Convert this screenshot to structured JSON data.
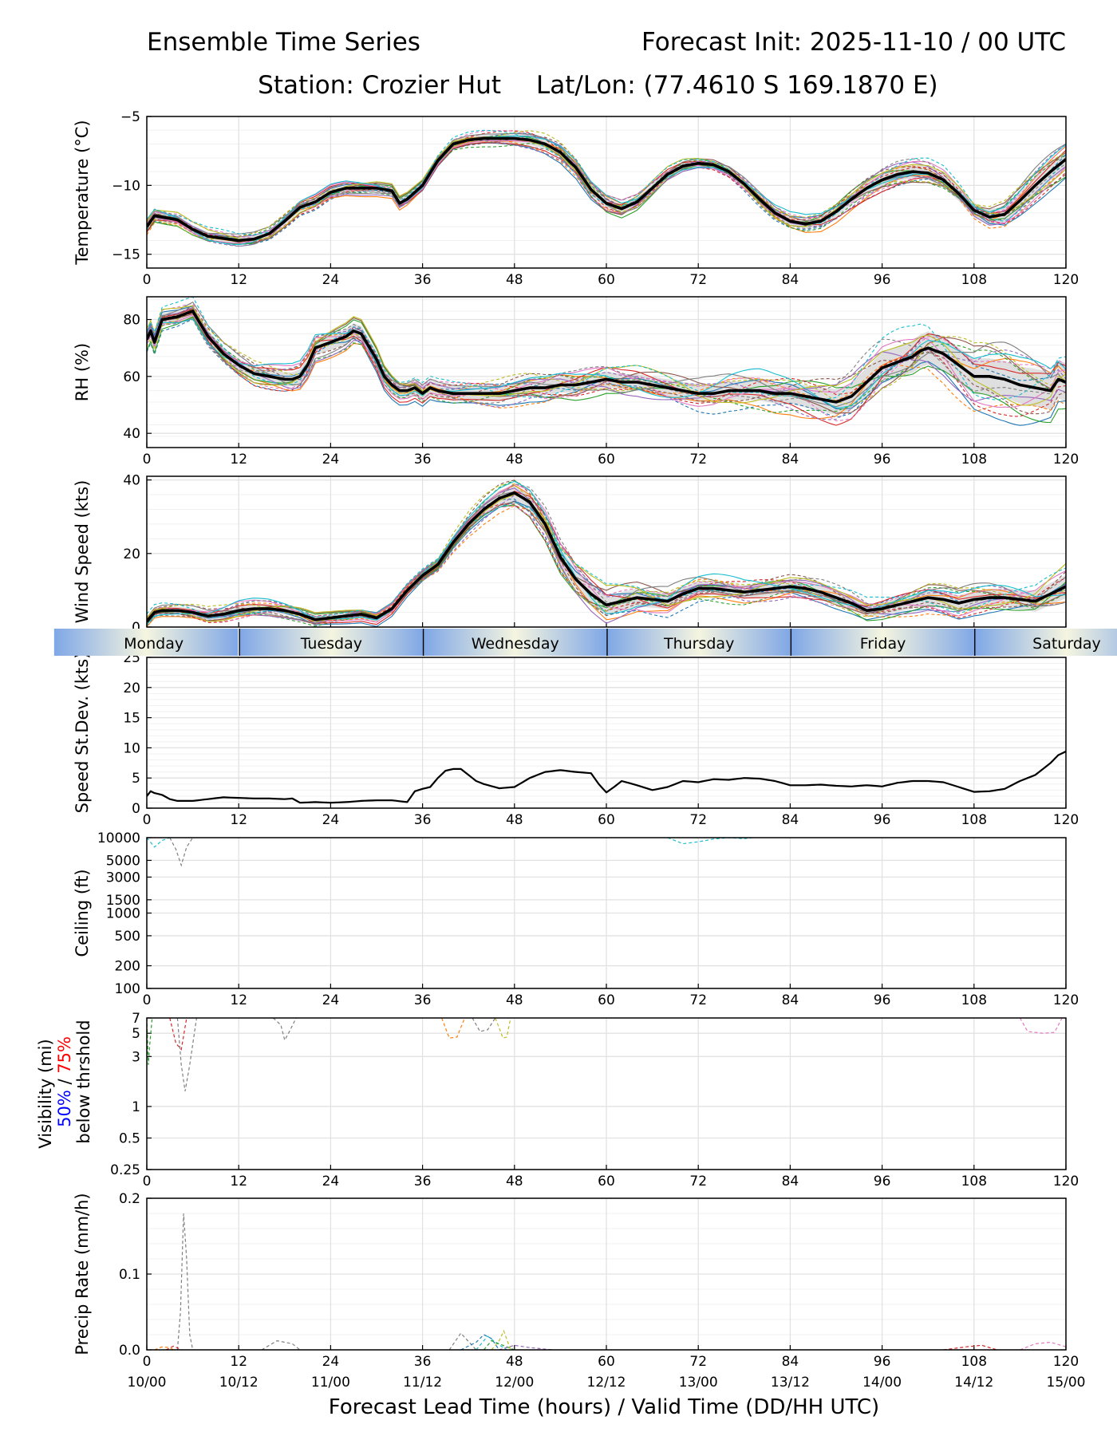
{
  "header": {
    "title_left": "Ensemble Time Series",
    "title_right": "Forecast Init: 2025-11-10 / 00 UTC",
    "station": "Station: Crozier Hut",
    "latlon": "Lat/Lon: (77.4610 S 169.1870 E)"
  },
  "colors": {
    "mean": "#000000",
    "spread": "#d9d9d9",
    "grid": "#e2e2e2",
    "vis50": "#0000ff",
    "vis75": "#ff0000",
    "day_blue": "#7fa7e6",
    "day_cream": "#f5f5e0",
    "members": [
      "#1f77b4",
      "#ff7f0e",
      "#2ca02c",
      "#d62728",
      "#9467bd",
      "#8c564b",
      "#e377c2",
      "#7f7f7f",
      "#bcbd22",
      "#17becf"
    ]
  },
  "chart_data": {
    "type": "line",
    "x_ticks": [
      0,
      12,
      24,
      36,
      48,
      60,
      72,
      84,
      96,
      108,
      120
    ],
    "xlabel": "Forecast Lead Time (hours) / Valid Time (DD/HH UTC)",
    "valid_time_labels": [
      "10/00",
      "10/12",
      "11/00",
      "11/12",
      "12/00",
      "12/12",
      "13/00",
      "13/12",
      "14/00",
      "14/12",
      "15/00"
    ],
    "day_labels": [
      "Monday",
      "Tuesday",
      "Wednesday",
      "Thursday",
      "Friday",
      "Saturday"
    ],
    "panels": [
      {
        "id": "temperature",
        "ylabel": "Temperature (°C)",
        "ylim": [
          -16,
          -5
        ],
        "yticks": [
          -15,
          -10,
          -5
        ],
        "ytick_labels": [
          "−15",
          "−10",
          "−5"
        ],
        "mean_x": [
          0,
          1,
          2,
          4,
          6,
          8,
          12,
          14,
          16,
          18,
          20,
          22,
          24,
          26,
          28,
          30,
          32,
          33,
          34,
          36,
          38,
          40,
          42,
          44,
          46,
          48,
          50,
          52,
          54,
          56,
          58,
          60,
          62,
          64,
          66,
          68,
          70,
          72,
          74,
          76,
          78,
          80,
          82,
          84,
          86,
          88,
          90,
          92,
          94,
          96,
          98,
          100,
          102,
          104,
          106,
          108,
          110,
          112,
          114,
          116,
          118,
          120
        ],
        "mean_y": [
          -13.0,
          -12.2,
          -12.3,
          -12.5,
          -13.2,
          -13.7,
          -14.0,
          -13.9,
          -13.5,
          -12.6,
          -11.6,
          -11.2,
          -10.5,
          -10.2,
          -10.2,
          -10.2,
          -10.4,
          -11.3,
          -11.0,
          -10.0,
          -8.2,
          -7.0,
          -6.7,
          -6.6,
          -6.6,
          -6.6,
          -6.7,
          -7.0,
          -7.6,
          -8.7,
          -10.3,
          -11.3,
          -11.7,
          -11.2,
          -10.2,
          -9.2,
          -8.6,
          -8.4,
          -8.5,
          -9.0,
          -9.9,
          -11.0,
          -12.0,
          -12.6,
          -12.8,
          -12.6,
          -11.9,
          -11.0,
          -10.2,
          -9.6,
          -9.2,
          -9.0,
          -9.1,
          -9.6,
          -10.6,
          -11.8,
          -12.3,
          -12.1,
          -11.1,
          -10.0,
          -9.0,
          -8.1
        ],
        "spread": [
          0.8,
          0.6,
          0.6,
          0.7,
          0.8,
          0.8,
          0.5,
          0.7,
          1.0,
          1.2,
          1.5
        ],
        "member_amp": 0.55
      },
      {
        "id": "rh",
        "ylabel": "RH (%)",
        "ylim": [
          35,
          88
        ],
        "yticks": [
          40,
          60,
          80
        ],
        "ytick_labels": [
          "40",
          "60",
          "80"
        ],
        "mean_x": [
          0,
          0.5,
          1,
          2,
          4,
          6,
          8,
          10,
          12,
          14,
          16,
          18,
          19,
          20,
          21,
          22,
          24,
          26,
          27,
          28,
          30,
          31,
          32,
          33,
          34,
          35,
          36,
          37,
          38,
          40,
          42,
          44,
          46,
          48,
          50,
          52,
          54,
          56,
          58,
          60,
          62,
          64,
          66,
          68,
          70,
          72,
          74,
          76,
          78,
          80,
          82,
          84,
          86,
          88,
          90,
          92,
          94,
          96,
          98,
          100,
          101,
          102,
          104,
          106,
          108,
          110,
          112,
          114,
          116,
          118,
          119,
          120
        ],
        "mean_y": [
          73,
          76,
          72,
          80,
          81,
          83,
          74,
          68,
          64,
          61,
          60,
          59,
          59,
          60,
          64,
          70,
          72,
          74,
          76,
          75,
          66,
          60,
          57,
          55,
          55,
          56,
          54,
          56,
          55,
          54,
          54,
          54,
          54,
          55,
          56,
          56,
          57,
          57,
          58,
          59,
          58,
          58,
          57,
          56,
          55,
          54,
          54,
          55,
          55,
          55,
          54,
          54,
          53,
          52,
          51,
          53,
          58,
          63,
          65,
          67,
          69,
          70,
          68,
          64,
          60,
          60,
          59,
          57,
          56,
          55,
          59,
          58
        ],
        "spread": [
          5,
          5,
          6,
          6,
          6,
          6,
          7,
          8,
          12,
          14,
          15
        ],
        "member_amp": 4.0
      },
      {
        "id": "wind_speed",
        "ylabel": "Wind Speed (kts)",
        "ylim": [
          0,
          41
        ],
        "yticks": [
          0,
          20,
          40
        ],
        "ytick_labels": [
          "0",
          "20",
          "40"
        ],
        "mean_x": [
          0,
          1,
          2,
          4,
          6,
          8,
          10,
          12,
          14,
          16,
          18,
          20,
          22,
          24,
          26,
          28,
          30,
          32,
          34,
          36,
          38,
          40,
          42,
          44,
          46,
          48,
          50,
          52,
          54,
          56,
          58,
          60,
          62,
          64,
          66,
          68,
          70,
          72,
          74,
          76,
          78,
          80,
          82,
          84,
          86,
          88,
          90,
          92,
          94,
          96,
          98,
          100,
          102,
          104,
          106,
          108,
          110,
          112,
          114,
          116,
          118,
          120
        ],
        "mean_y": [
          1.5,
          4.0,
          4.5,
          4.5,
          4.0,
          3.0,
          3.5,
          4.5,
          5.0,
          5.0,
          4.5,
          3.5,
          2.0,
          2.5,
          3.0,
          3.5,
          2.5,
          5.0,
          10.0,
          14.0,
          17.0,
          23.0,
          28.0,
          32.0,
          35.0,
          36.5,
          34.0,
          28.0,
          19.0,
          13.0,
          9.0,
          6.0,
          7.0,
          8.0,
          7.5,
          7.0,
          9.0,
          10.5,
          10.5,
          10.0,
          9.5,
          10.0,
          10.5,
          11.0,
          10.5,
          9.5,
          8.0,
          6.5,
          4.5,
          5.0,
          6.0,
          7.0,
          8.0,
          7.5,
          6.5,
          7.5,
          8.0,
          8.0,
          7.5,
          7.0,
          9.0,
          11.0
        ],
        "spread": [
          2,
          3,
          2,
          3,
          5,
          6,
          4,
          4,
          4,
          5,
          7
        ],
        "member_amp": 2.5
      },
      {
        "id": "speed_stdev",
        "ylabel": "Speed St.Dev. (kts)",
        "ylim": [
          0,
          25
        ],
        "yticks": [
          0,
          5,
          10,
          15,
          20,
          25
        ],
        "ytick_labels": [
          "0",
          "5",
          "10",
          "15",
          "20",
          "25"
        ],
        "mean_x": [
          0,
          0.5,
          1,
          2,
          3,
          4,
          6,
          8,
          10,
          12,
          14,
          16,
          18,
          19,
          20,
          22,
          24,
          26,
          28,
          30,
          32,
          34,
          35,
          36,
          37,
          38,
          39,
          40,
          41,
          42,
          43,
          44,
          46,
          48,
          50,
          52,
          54,
          56,
          58,
          59,
          60,
          61,
          62,
          64,
          66,
          68,
          70,
          72,
          74,
          76,
          78,
          80,
          82,
          84,
          86,
          88,
          90,
          92,
          94,
          96,
          98,
          100,
          102,
          104,
          106,
          108,
          110,
          112,
          114,
          116,
          118,
          119,
          120
        ],
        "mean_y": [
          2.0,
          2.8,
          2.5,
          2.2,
          1.5,
          1.2,
          1.2,
          1.5,
          1.8,
          1.7,
          1.6,
          1.6,
          1.5,
          1.6,
          0.9,
          1.0,
          0.9,
          1.0,
          1.2,
          1.3,
          1.3,
          1.0,
          2.8,
          3.2,
          3.5,
          5.0,
          6.2,
          6.5,
          6.5,
          5.5,
          4.5,
          4.0,
          3.3,
          3.5,
          5.0,
          6.0,
          6.3,
          6.0,
          5.8,
          4.0,
          2.6,
          3.5,
          4.5,
          3.8,
          3.0,
          3.5,
          4.5,
          4.3,
          4.8,
          4.7,
          5.0,
          4.9,
          4.5,
          3.8,
          3.8,
          3.9,
          3.7,
          3.6,
          3.8,
          3.6,
          4.2,
          4.5,
          4.5,
          4.3,
          3.5,
          2.7,
          2.8,
          3.2,
          4.5,
          5.5,
          7.5,
          8.8,
          9.4
        ],
        "spread": null,
        "member_amp": 0
      },
      {
        "id": "ceiling",
        "ylabel": "Ceiling (ft)",
        "yscale": "log",
        "ylim": [
          100,
          10000
        ],
        "yticks": [
          100,
          200,
          500,
          1000,
          1500,
          3000,
          5000,
          10000
        ],
        "ytick_labels": [
          "100",
          "200",
          "500",
          "1000",
          "1500",
          "3000",
          "5000",
          "10000"
        ],
        "traces": [
          {
            "member": 9,
            "x": [
              0,
              1,
              2,
              3
            ],
            "y": [
              10000,
              7500,
              9200,
              10000
            ]
          },
          {
            "member": 7,
            "x": [
              3,
              3.8,
              4.5,
              5.2,
              6
            ],
            "y": [
              10000,
              7000,
              4300,
              7500,
              10000
            ]
          },
          {
            "member": 9,
            "x": [
              68,
              70,
              72,
              74,
              76,
              78,
              79
            ],
            "y": [
              10000,
              8300,
              8800,
              9600,
              10000,
              9700,
              10000
            ]
          }
        ]
      },
      {
        "id": "visibility",
        "ylabel": "Visibility (mi)",
        "ylabel_note_50": "50%",
        "ylabel_note_sep": " / ",
        "ylabel_note_75": "75%",
        "ylabel_note_line2": "below thrshold",
        "yscale": "log",
        "ylim": [
          0.25,
          7
        ],
        "yticks": [
          0.25,
          0.5,
          1,
          3,
          5,
          7
        ],
        "ytick_labels": [
          "0.25",
          "0.5",
          "1",
          "3",
          "5",
          "7"
        ],
        "traces": [
          {
            "member": 2,
            "x": [
              0,
              0.2,
              0.4,
              0.7
            ],
            "y": [
              7,
              2.5,
              4,
              7
            ]
          },
          {
            "member": 3,
            "x": [
              3,
              3.8,
              4.5,
              5.2
            ],
            "y": [
              7,
              4,
              3.5,
              7
            ]
          },
          {
            "member": 7,
            "x": [
              4,
              4.5,
              5,
              5.6,
              6.5
            ],
            "y": [
              7,
              2.5,
              1.4,
              2.5,
              7
            ]
          },
          {
            "member": 7,
            "x": [
              16.5,
              17.5,
              18,
              18.5,
              19.5
            ],
            "y": [
              7,
              6,
              4.3,
              5,
              7
            ]
          },
          {
            "member": 1,
            "x": [
              38.5,
              39.5,
              40.5,
              41.5
            ],
            "y": [
              7,
              4.5,
              4.6,
              7
            ]
          },
          {
            "member": 7,
            "x": [
              42.5,
              43.5,
              44.5,
              45.5
            ],
            "y": [
              7,
              5.2,
              5.4,
              7
            ]
          },
          {
            "member": 8,
            "x": [
              45.5,
              46.5,
              47,
              47.5
            ],
            "y": [
              7,
              4.5,
              4.6,
              7
            ]
          },
          {
            "member": 6,
            "x": [
              114,
              115,
              117,
              118.5,
              119.5
            ],
            "y": [
              7,
              5.2,
              5.0,
              5.1,
              7
            ]
          }
        ]
      },
      {
        "id": "precip_rate",
        "ylabel": "Precip Rate (mm/h)",
        "ylim": [
          0,
          0.2
        ],
        "yticks": [
          0.0,
          0.1,
          0.2
        ],
        "ytick_labels": [
          "0.0",
          "0.1",
          "0.2"
        ],
        "traces": [
          {
            "member": 7,
            "x": [
              4,
              4.4,
              4.8,
              5.2,
              5.6,
              6
            ],
            "y": [
              0,
              0.05,
              0.18,
              0.12,
              0.02,
              0
            ]
          },
          {
            "member": 1,
            "x": [
              1,
              2,
              3,
              3.5
            ],
            "y": [
              0,
              0.004,
              0.003,
              0
            ]
          },
          {
            "member": 3,
            "x": [
              2.5,
              3.5,
              4.5
            ],
            "y": [
              0,
              0.005,
              0
            ]
          },
          {
            "member": 7,
            "x": [
              15,
              17,
              19,
              20
            ],
            "y": [
              0,
              0.012,
              0.008,
              0
            ]
          },
          {
            "member": 7,
            "x": [
              39.5,
              41,
              43
            ],
            "y": [
              0,
              0.022,
              0
            ]
          },
          {
            "member": 0,
            "x": [
              41,
              43,
              44,
              45,
              46
            ],
            "y": [
              0,
              0.01,
              0.02,
              0.015,
              0
            ]
          },
          {
            "member": 8,
            "x": [
              45,
              46,
              46.6,
              47.5
            ],
            "y": [
              0,
              0.012,
              0.025,
              0
            ]
          },
          {
            "member": 9,
            "x": [
              43,
              44.5,
              45.5,
              47
            ],
            "y": [
              0,
              0.018,
              0.01,
              0
            ]
          },
          {
            "member": 2,
            "x": [
              44,
              45,
              46,
              48
            ],
            "y": [
              0,
              0.012,
              0.008,
              0
            ]
          },
          {
            "member": 4,
            "x": [
              46,
              48,
              50,
              53
            ],
            "y": [
              0,
              0.006,
              0.003,
              0
            ]
          },
          {
            "member": 3,
            "x": [
              104,
              107,
              109,
              111
            ],
            "y": [
              0,
              0.004,
              0.006,
              0
            ]
          },
          {
            "member": 6,
            "x": [
              114,
              116,
              118,
              120
            ],
            "y": [
              0,
              0.008,
              0.01,
              0.004
            ]
          }
        ]
      }
    ]
  }
}
